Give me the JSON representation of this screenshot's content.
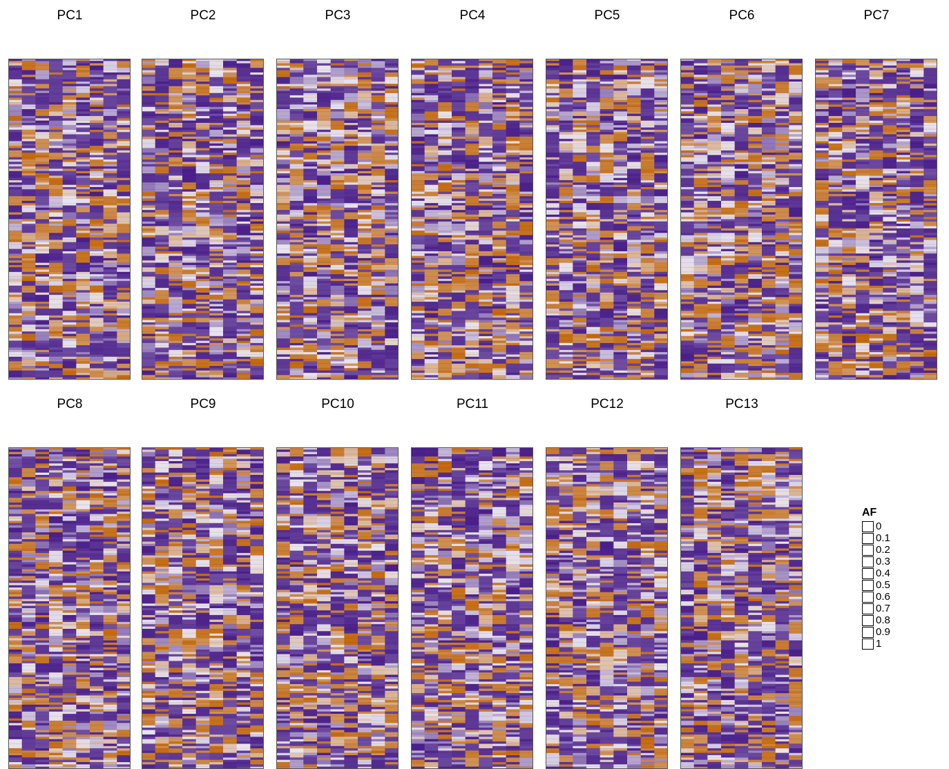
{
  "chart_data": {
    "type": "heatmap",
    "legend": {
      "title": "AF",
      "levels": [
        "0",
        "0.1",
        "0.2",
        "0.3",
        "0.4",
        "0.5",
        "0.6",
        "0.7",
        "0.8",
        "0.9",
        "1"
      ]
    },
    "color_scale": {
      "low": "#4a1f8a",
      "mid": "#e8e4ee",
      "high": "#c46a0d"
    },
    "panels": [
      {
        "title": "PC1"
      },
      {
        "title": "PC2"
      },
      {
        "title": "PC3"
      },
      {
        "title": "PC4"
      },
      {
        "title": "PC5"
      },
      {
        "title": "PC6"
      },
      {
        "title": "PC7"
      },
      {
        "title": "PC8"
      },
      {
        "title": "PC9"
      },
      {
        "title": "PC10"
      },
      {
        "title": "PC11"
      },
      {
        "title": "PC12"
      },
      {
        "title": "PC13"
      }
    ]
  }
}
